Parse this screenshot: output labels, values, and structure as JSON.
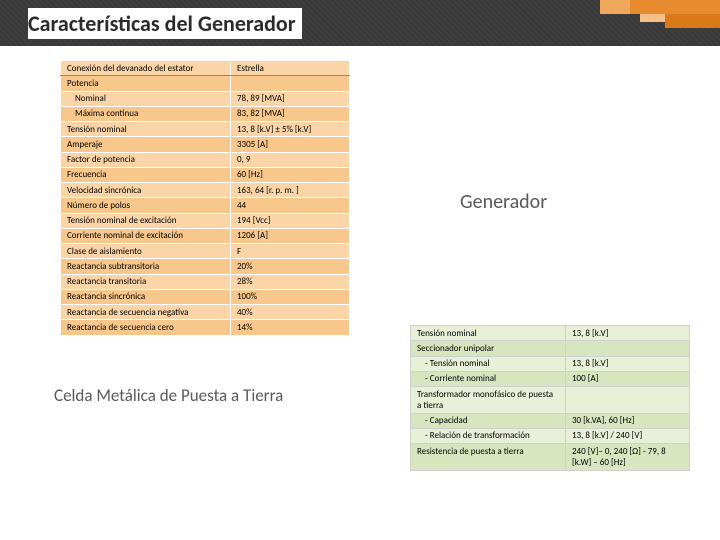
{
  "title": "Características del Generador",
  "subtitle_gen": "Generador",
  "subtitle_celda": "Celda Metálica de Puesta a Tierra",
  "colors": {
    "gen_row_light": "#fbd5a8",
    "gen_row_dark": "#f8c78c",
    "ground_row_a": "#e8f0d8",
    "ground_row_b": "#d8e6c0"
  },
  "gen_header": {
    "label": "Conexión del devanado del estator",
    "value": "Estrella"
  },
  "gen_rows": [
    {
      "label": "Potencia",
      "value": "",
      "sub": false
    },
    {
      "label": "Nominal",
      "value": "78, 89 [MVA]",
      "sub": true
    },
    {
      "label": "Máxima continua",
      "value": "83, 82 [MVA]",
      "sub": true
    },
    {
      "label": "Tensión nominal",
      "value": "13, 8 [k.V] ± 5% [k.V]",
      "sub": false
    },
    {
      "label": "Amperaje",
      "value": "3305 [A]",
      "sub": false
    },
    {
      "label": "Factor de potencia",
      "value": "0, 9",
      "sub": false
    },
    {
      "label": "Frecuencia",
      "value": "60 [Hz]",
      "sub": false
    },
    {
      "label": "Velocidad sincrónica",
      "value": "163, 64 [r. p. m. ]",
      "sub": false
    },
    {
      "label": "Número de polos",
      "value": "44",
      "sub": false
    },
    {
      "label": "Tensión nominal de excitación",
      "value": "194 [Vcc]",
      "sub": false
    },
    {
      "label": "Corriente nominal de excitación",
      "value": "1206 [A]",
      "sub": false
    },
    {
      "label": "Clase de aislamiento",
      "value": "F",
      "sub": false
    },
    {
      "label": "Reactancia subtransitoria",
      "value": "20%",
      "sub": false
    },
    {
      "label": "Reactancia transitoria",
      "value": "28%",
      "sub": false
    },
    {
      "label": "Reactancia sincrónica",
      "value": "100%",
      "sub": false
    },
    {
      "label": "Reactancia de secuencia negativa",
      "value": "40%",
      "sub": false
    },
    {
      "label": "Reactancia de secuencia cero",
      "value": "14%",
      "sub": false
    }
  ],
  "ground_rows": [
    {
      "label": "Tensión nominal",
      "value": "13, 8 [k.V]",
      "sub": false
    },
    {
      "label": "Seccionador unipolar",
      "value": "",
      "sub": false
    },
    {
      "label": "- Tensión nominal",
      "value": "13, 8 [k.V]",
      "sub": true
    },
    {
      "label": "- Corriente nominal",
      "value": "100 [A]",
      "sub": true
    },
    {
      "label": "Transformador monofásico de puesta a tierra",
      "value": "",
      "sub": false
    },
    {
      "label": "- Capacidad",
      "value": "30 [k.VA], 60 [Hz]",
      "sub": true
    },
    {
      "label": "- Relación de transformación",
      "value": "13, 8 [k.V] / 240 [V]",
      "sub": true
    },
    {
      "label": "Resistencia de puesta a tierra",
      "value": "240 [V]– 0, 240 [Ω] - 79, 8 [k.W] – 60 [Hz]",
      "sub": false
    }
  ]
}
